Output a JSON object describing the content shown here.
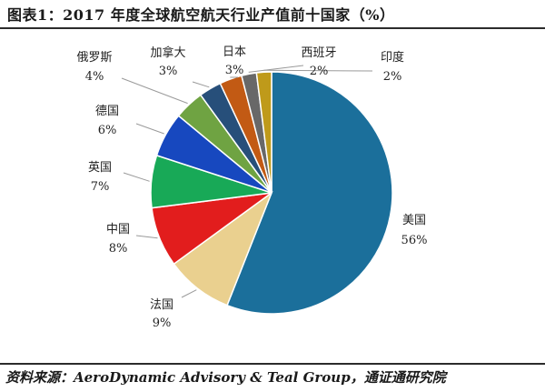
{
  "title": "图表1：2017 年度全球航空航天行业产值前十国家（%）",
  "source": "资料来源：AeroDynamic Advisory & Teal Group，通证通研究院",
  "chart_data": {
    "type": "pie",
    "title": "图表1：2017 年度全球航空航天行业产值前十国家（%）",
    "categories": [
      "美国",
      "法国",
      "中国",
      "英国",
      "德国",
      "俄罗斯",
      "加拿大",
      "日本",
      "西班牙",
      "印度"
    ],
    "values": [
      56,
      9,
      8,
      7,
      6,
      4,
      3,
      3,
      2,
      2
    ],
    "value_labels": [
      "56%",
      "9%",
      "8%",
      "7%",
      "6%",
      "4%",
      "3%",
      "3%",
      "2%",
      "2%"
    ],
    "colors": [
      "#1b6f9b",
      "#ead08f",
      "#e21d1d",
      "#18a957",
      "#1748bf",
      "#6fa342",
      "#274f7a",
      "#c25a14",
      "#686868",
      "#bf9a1a"
    ],
    "start_at": "top",
    "direction": "clockwise",
    "legend": "none"
  }
}
